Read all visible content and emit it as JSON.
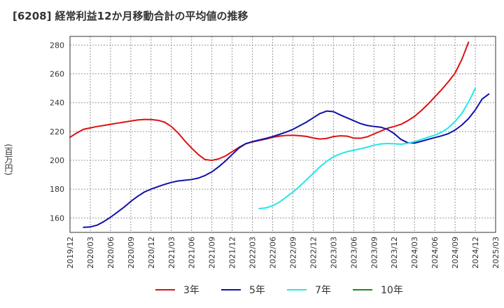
{
  "chart_data": {
    "type": "line",
    "title": "[6208]  経常利益12か月移動合計の平均値の推移",
    "ylabel": "(百万円)",
    "xlabel": "",
    "ylim": [
      150,
      286
    ],
    "yticks": [
      160,
      180,
      200,
      220,
      240,
      260,
      280
    ],
    "xticks": [
      "2019/12",
      "2020/03",
      "2020/06",
      "2020/09",
      "2020/12",
      "2021/03",
      "2021/06",
      "2021/09",
      "2021/12",
      "2022/03",
      "2022/06",
      "2022/09",
      "2022/12",
      "2023/03",
      "2023/06",
      "2023/09",
      "2023/12",
      "2024/03",
      "2024/06",
      "2024/09",
      "2024/12",
      "2025/03"
    ],
    "grid": true,
    "legend_position": "bottom",
    "series": [
      {
        "name": "3年",
        "color": "#dd1111",
        "start": "2019/12",
        "values": [
          216,
          219,
          221.5,
          222.5,
          223.5,
          224.2,
          225,
          225.8,
          226.5,
          227.3,
          228,
          228.4,
          228.3,
          227.8,
          226.5,
          223.5,
          219,
          213.5,
          208.5,
          204,
          200.5,
          200,
          201,
          203,
          206,
          209,
          211.5,
          212.8,
          213.8,
          214.8,
          216,
          216.8,
          217.3,
          217.4,
          217.1,
          216.6,
          215.5,
          214.8,
          215.2,
          216.5,
          217,
          216.8,
          215.4,
          215.3,
          216.3,
          218.3,
          220.3,
          222.3,
          223.5,
          225,
          227.5,
          230.5,
          234.5,
          239,
          244,
          249,
          254.5,
          260.5,
          270,
          282
        ]
      },
      {
        "name": "5年",
        "color": "#1111aa",
        "start": "2019/12",
        "values": [
          null,
          null,
          153.5,
          153.8,
          155,
          157.5,
          160.5,
          164,
          167.5,
          171.5,
          175,
          178,
          180,
          181.7,
          183.3,
          184.7,
          185.7,
          186.2,
          186.7,
          187.7,
          189.5,
          192,
          195.5,
          199.5,
          204,
          208.5,
          211.5,
          213,
          214.1,
          215.2,
          216.5,
          218,
          219.6,
          221.5,
          224,
          226.5,
          229.5,
          232.5,
          234.2,
          233.8,
          231.5,
          229.5,
          227.5,
          225.5,
          224.2,
          223.5,
          223,
          221.5,
          218.5,
          214.5,
          212.2,
          212,
          213.2,
          214.5,
          215.8,
          217,
          218.5,
          221,
          224.5,
          229,
          235,
          242.5,
          246
        ]
      },
      {
        "name": "7年",
        "color": "#22e8e8",
        "start": "2019/12",
        "values": [
          null,
          null,
          null,
          null,
          null,
          null,
          null,
          null,
          null,
          null,
          null,
          null,
          null,
          null,
          null,
          null,
          null,
          null,
          null,
          null,
          null,
          null,
          null,
          null,
          null,
          null,
          null,
          null,
          166.5,
          167,
          168.5,
          171,
          174.5,
          178,
          182,
          186.5,
          191,
          195.5,
          199.3,
          202.5,
          204.5,
          206,
          207,
          208,
          209.2,
          210.5,
          211.4,
          211.7,
          211.5,
          211.2,
          211.8,
          213,
          214.5,
          216,
          217.5,
          219.5,
          222.5,
          227,
          232.5,
          240.5,
          250
        ]
      },
      {
        "name": "10年",
        "color": "#228822",
        "start": "2019/12",
        "values": []
      }
    ]
  }
}
